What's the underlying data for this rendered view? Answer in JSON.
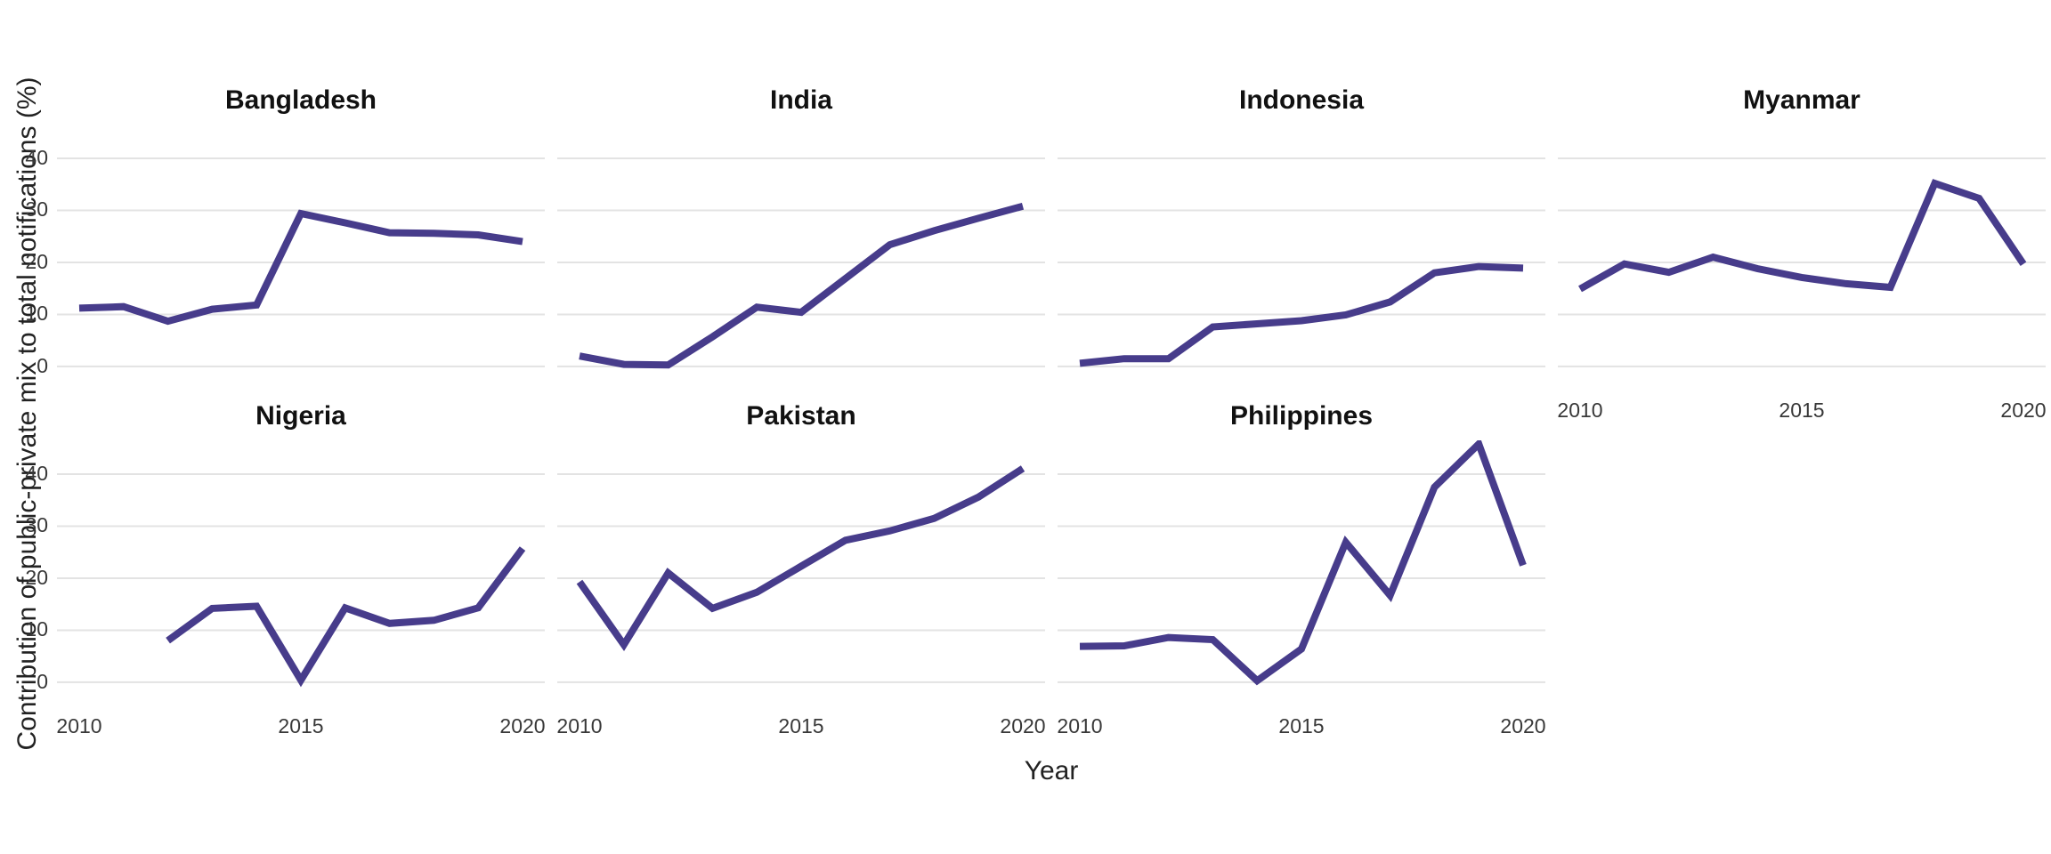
{
  "figure": {
    "ylabel": "Contribution of public-private mix to total notifications (%)",
    "xlabel": "Year",
    "colors": {
      "line": "#473C8B",
      "grid": "#E3E3E3",
      "tick_text": "#383838",
      "title_text": "#111111",
      "background": "#FFFFFF"
    }
  },
  "chart_data": {
    "type": "line",
    "title": "",
    "xlabel": "Year",
    "ylabel": "Contribution of public-private mix to total notifications (%)",
    "x_ticks": [
      2010,
      2015,
      2020
    ],
    "y_ticks": [
      0,
      10,
      20,
      30,
      40
    ],
    "xlim": [
      2010,
      2020
    ],
    "ylim": [
      -4.8,
      46.5
    ],
    "grid": "horizontal-major-only",
    "legend": "none",
    "line_color": "#473C8B",
    "facets": [
      {
        "name": "Bangladesh",
        "years": [
          2010,
          2011,
          2012,
          2013,
          2014,
          2015,
          2016,
          2017,
          2018,
          2019,
          2020
        ],
        "values": [
          11.2,
          11.5,
          8.7,
          11.0,
          11.8,
          29.4,
          27.6,
          25.7,
          25.6,
          25.3,
          24.0
        ]
      },
      {
        "name": "India",
        "years": [
          2010,
          2011,
          2012,
          2013,
          2014,
          2015,
          2016,
          2017,
          2018,
          2019,
          2020
        ],
        "values": [
          2.0,
          0.4,
          0.3,
          5.7,
          11.4,
          10.4,
          16.9,
          23.4,
          26.1,
          28.5,
          30.8
        ]
      },
      {
        "name": "Indonesia",
        "years": [
          2010,
          2011,
          2012,
          2013,
          2014,
          2015,
          2016,
          2017,
          2018,
          2019,
          2020
        ],
        "values": [
          0.6,
          1.5,
          1.5,
          7.6,
          8.2,
          8.8,
          9.9,
          12.4,
          18.0,
          19.2,
          18.9
        ]
      },
      {
        "name": "Myanmar",
        "years": [
          2010,
          2011,
          2012,
          2013,
          2014,
          2015,
          2016,
          2017,
          2018,
          2019,
          2020
        ],
        "values": [
          14.9,
          19.7,
          18.1,
          21.0,
          18.8,
          17.1,
          15.9,
          15.2,
          35.2,
          32.3,
          19.7
        ]
      },
      {
        "name": "Nigeria",
        "years": [
          2012,
          2013,
          2014,
          2015,
          2016,
          2017,
          2018,
          2019,
          2020
        ],
        "values": [
          8.0,
          14.2,
          14.6,
          0.4,
          14.3,
          11.3,
          11.9,
          14.3,
          25.7
        ]
      },
      {
        "name": "Pakistan",
        "years": [
          2010,
          2011,
          2012,
          2013,
          2014,
          2015,
          2016,
          2017,
          2018,
          2019,
          2020
        ],
        "values": [
          19.3,
          7.2,
          21.0,
          14.2,
          17.3,
          22.3,
          27.3,
          29.1,
          31.5,
          35.6,
          41.1
        ]
      },
      {
        "name": "Philippines",
        "years": [
          2010,
          2011,
          2012,
          2013,
          2014,
          2015,
          2016,
          2017,
          2018,
          2019,
          2020
        ],
        "values": [
          6.9,
          7.0,
          8.6,
          8.2,
          0.3,
          6.4,
          26.9,
          16.7,
          37.5,
          45.8,
          22.5
        ]
      }
    ]
  }
}
